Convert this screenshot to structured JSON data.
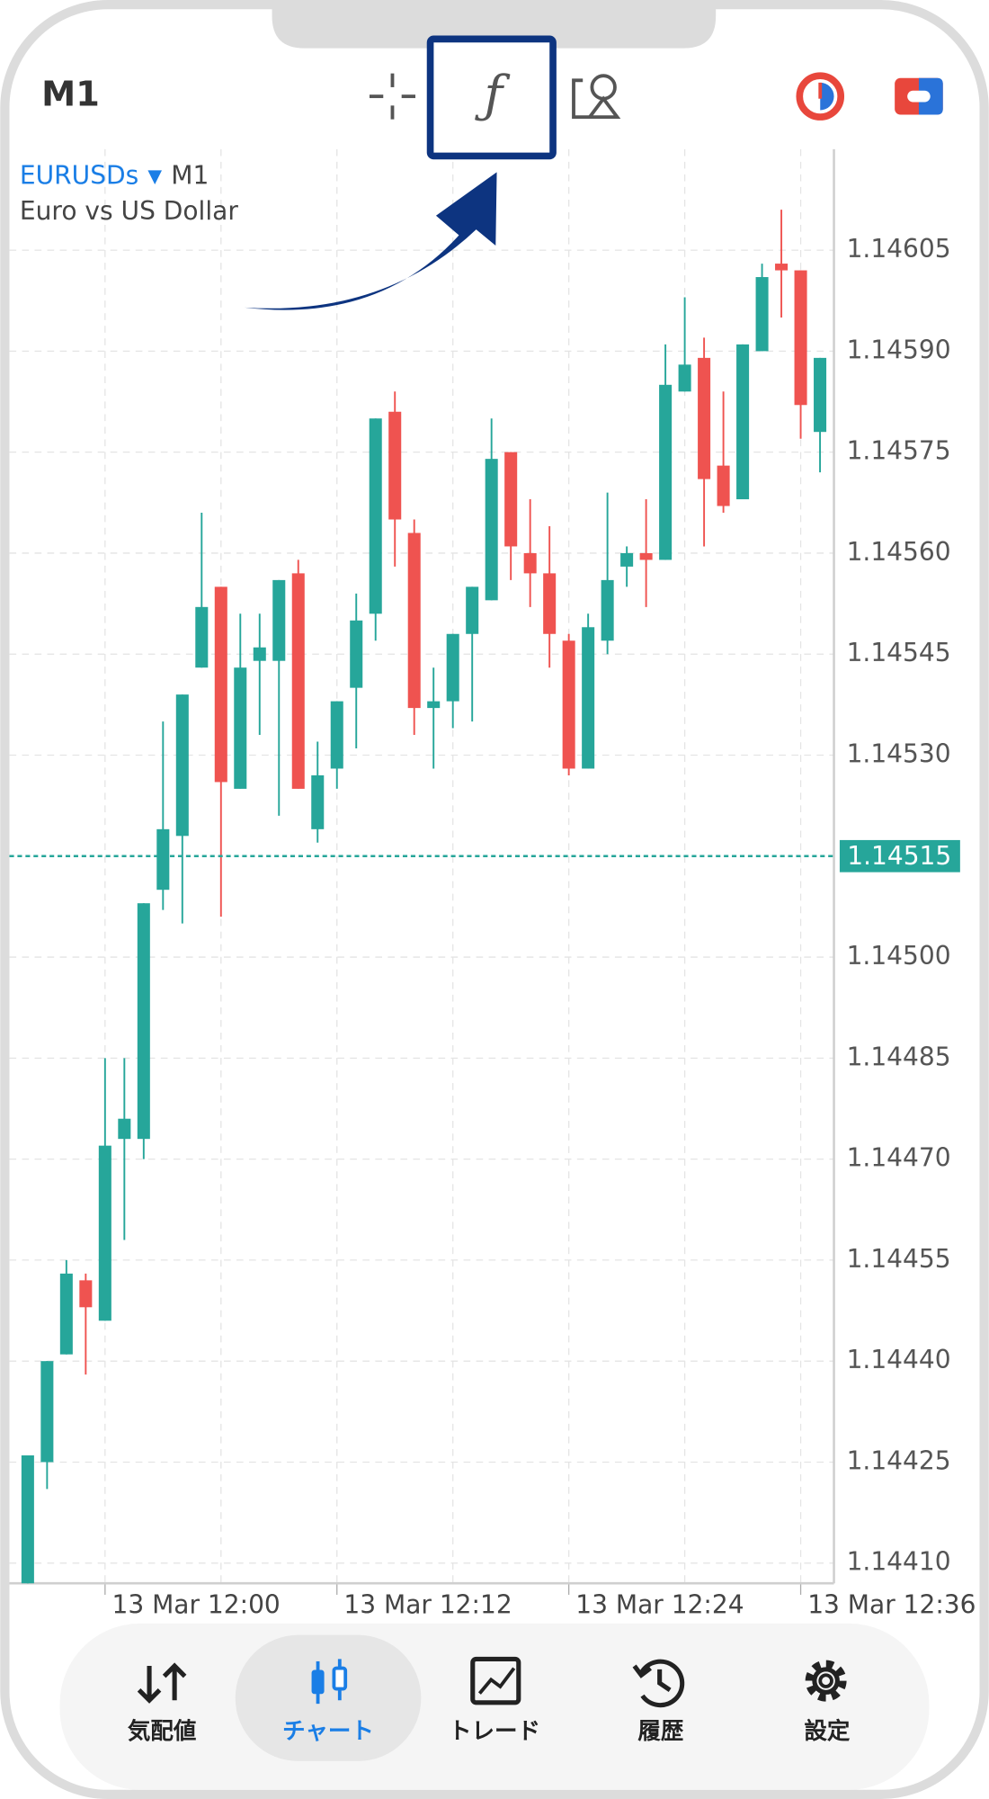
{
  "toolbar": {
    "timeframe": "M1"
  },
  "chart_data": {
    "type": "candlestick",
    "symbol": "EURUSDs",
    "timeframe": "M1",
    "description": "Euro vs US Dollar",
    "categories": [
      null,
      null,
      null,
      null,
      "13 Mar 12:00",
      null,
      null,
      null,
      null,
      null,
      null,
      null,
      null,
      null,
      null,
      null,
      "13 Mar 12:12",
      null,
      null,
      null,
      null,
      null,
      null,
      null,
      null,
      null,
      null,
      null,
      "13 Mar 12:24",
      null,
      null,
      null,
      null,
      null,
      null,
      null,
      null,
      null,
      null,
      null,
      "13 Mar 12:36",
      null
    ],
    "open": [
      1.14407,
      1.14425,
      1.14441,
      1.14452,
      1.14446,
      1.14473,
      1.14473,
      1.1451,
      1.14518,
      1.14543,
      1.14555,
      1.14525,
      1.14544,
      1.14544,
      1.14557,
      1.14519,
      1.14528,
      1.1454,
      1.14551,
      1.14581,
      1.14563,
      1.14537,
      1.14538,
      1.14548,
      1.14553,
      1.14575,
      1.1456,
      1.14557,
      1.14547,
      1.14528,
      1.14547,
      1.14558,
      1.1456,
      1.14559,
      1.14584,
      1.14589,
      1.14573,
      1.14568,
      1.1459,
      1.14603,
      1.14602,
      1.14578
    ],
    "high": [
      1.14426,
      1.1444,
      1.14455,
      1.14453,
      1.14485,
      1.14485,
      1.14508,
      1.14535,
      1.14539,
      1.14566,
      1.14555,
      1.14551,
      1.14551,
      1.14556,
      1.14559,
      1.14532,
      1.14538,
      1.14554,
      1.1458,
      1.14584,
      1.14565,
      1.14543,
      1.14548,
      1.14555,
      1.1458,
      1.14575,
      1.14568,
      1.14564,
      1.14548,
      1.14551,
      1.14569,
      1.14561,
      1.14568,
      1.14591,
      1.14598,
      1.14592,
      1.14584,
      1.14591,
      1.14603,
      1.14611,
      1.14602,
      1.14589
    ],
    "low": [
      1.14407,
      1.14421,
      1.14441,
      1.14438,
      1.14446,
      1.14458,
      1.1447,
      1.14507,
      1.14505,
      1.14543,
      1.14506,
      1.14525,
      1.14533,
      1.14521,
      1.14525,
      1.14517,
      1.14525,
      1.14531,
      1.14547,
      1.14558,
      1.14533,
      1.14528,
      1.14534,
      1.14535,
      1.14553,
      1.14556,
      1.14552,
      1.14543,
      1.14527,
      1.14528,
      1.14545,
      1.14555,
      1.14552,
      1.14559,
      1.14584,
      1.14561,
      1.14566,
      1.14568,
      1.1459,
      1.14595,
      1.14577,
      1.14572
    ],
    "close": [
      1.14426,
      1.1444,
      1.14453,
      1.14448,
      1.14472,
      1.14476,
      1.14508,
      1.14519,
      1.14539,
      1.14552,
      1.14526,
      1.14543,
      1.14546,
      1.14556,
      1.14525,
      1.14527,
      1.14538,
      1.1455,
      1.1458,
      1.14565,
      1.14537,
      1.14538,
      1.14548,
      1.14555,
      1.14574,
      1.14561,
      1.14557,
      1.14548,
      1.14528,
      1.14549,
      1.14556,
      1.1456,
      1.14559,
      1.14585,
      1.14588,
      1.14571,
      1.14567,
      1.14591,
      1.14601,
      1.14602,
      1.14582,
      1.14589
    ],
    "up_color": "#26a69a",
    "down_color": "#ef5350",
    "ylim": [
      1.14407,
      1.1462
    ],
    "yticks": [
      1.14605,
      {
        "value": 1.1459,
        "label": "1.14590"
      },
      1.14575,
      {
        "value": 1.1456,
        "label": "1.14560"
      },
      1.14545,
      {
        "value": 1.1453,
        "label": "1.14530"
      },
      {
        "value": 1.145,
        "label": "1.14500"
      },
      1.14485,
      {
        "value": 1.1447,
        "label": "1.14470"
      },
      1.14455,
      {
        "value": 1.1444,
        "label": "1.14440"
      },
      1.14425,
      {
        "value": 1.1441,
        "label": "1.14410"
      }
    ],
    "current_price": 1.14515,
    "grid": true
  },
  "nav": {
    "items": [
      "気配値",
      "チャート",
      "トレード",
      "履歴",
      "設定"
    ],
    "active": 1
  }
}
